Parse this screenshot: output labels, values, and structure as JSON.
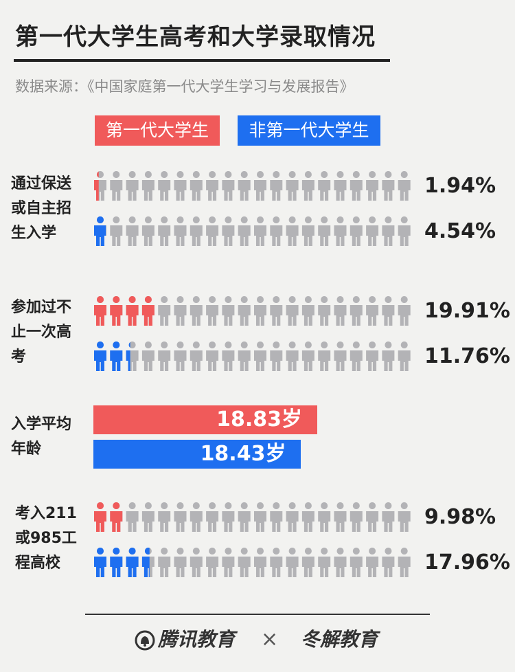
{
  "title": "第一代大学生高考和大学录取情况",
  "source": "数据来源：《中国家庭第一代大学生学习与发展报告》",
  "legend": {
    "first": "第一代大学生",
    "non": "非第一代大学生"
  },
  "colors": {
    "first": "#f05a5a",
    "non": "#1e6ff0",
    "empty": "#b3b3b6"
  },
  "chart_data": {
    "type": "bar",
    "icon_count": 20,
    "rows": [
      {
        "label": "通过保送或自主招生入学",
        "first": 1.94,
        "non": 4.54,
        "first_label": "1.94%",
        "non_label": "4.54%",
        "unit": "%"
      },
      {
        "label": "参加过不止一次高考",
        "first": 19.91,
        "non": 11.76,
        "first_label": "19.91%",
        "non_label": "11.76%",
        "unit": "%"
      },
      {
        "label": "入学平均年龄",
        "first": 18.83,
        "non": 18.43,
        "first_label": "18.83岁",
        "non_label": "18.43岁",
        "unit": "岁"
      },
      {
        "label": "考入211或985工程高校",
        "first": 9.98,
        "non": 17.96,
        "first_label": "9.98%",
        "non_label": "17.96%",
        "unit": "%"
      }
    ]
  },
  "labels": {
    "row1": [
      "通过保送",
      "或自主招",
      "生入学"
    ],
    "row2": [
      "参加过不",
      "止一次高",
      "考"
    ],
    "row3": [
      "入学平均",
      "年龄"
    ],
    "row4": [
      "考入211",
      "或985工",
      "程高校"
    ]
  },
  "footer": {
    "brand1": "腾讯教育",
    "times": "×",
    "brand2": "冬解教育"
  }
}
